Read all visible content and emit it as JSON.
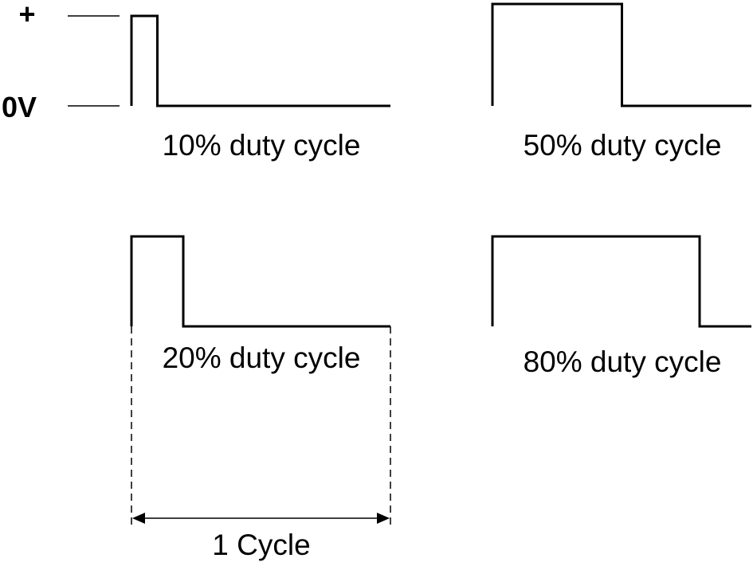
{
  "labels": {
    "plus": "+",
    "zero_volt": "0V"
  },
  "waveforms": [
    {
      "caption": "10% duty cycle",
      "duty": 0.1
    },
    {
      "caption": "50% duty cycle",
      "duty": 0.5
    },
    {
      "caption": "20% duty cycle",
      "duty": 0.2
    },
    {
      "caption": "80% duty cycle",
      "duty": 0.8
    }
  ],
  "cycle": {
    "label": "1 Cycle"
  }
}
